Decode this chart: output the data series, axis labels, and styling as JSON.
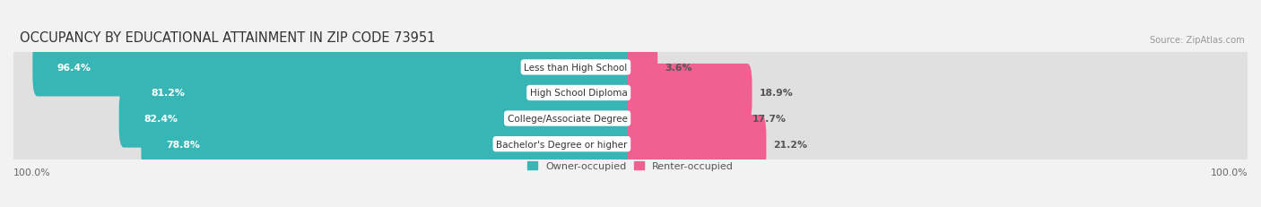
{
  "title": "OCCUPANCY BY EDUCATIONAL ATTAINMENT IN ZIP CODE 73951",
  "source": "Source: ZipAtlas.com",
  "categories": [
    "Less than High School",
    "High School Diploma",
    "College/Associate Degree",
    "Bachelor's Degree or higher"
  ],
  "owner_values": [
    96.4,
    81.2,
    82.4,
    78.8
  ],
  "renter_values": [
    3.6,
    18.9,
    17.7,
    21.2
  ],
  "owner_color": "#38B6B6",
  "renter_color": "#F06090",
  "bar_bg_color": "#E0E0E0",
  "owner_label": "Owner-occupied",
  "renter_label": "Renter-occupied",
  "title_fontsize": 10.5,
  "bar_height": 0.68,
  "axis_label_left": "100.0%",
  "axis_label_right": "100.0%",
  "figsize": [
    14.06,
    2.32
  ],
  "dpi": 100,
  "bg_color": "#F2F2F2"
}
